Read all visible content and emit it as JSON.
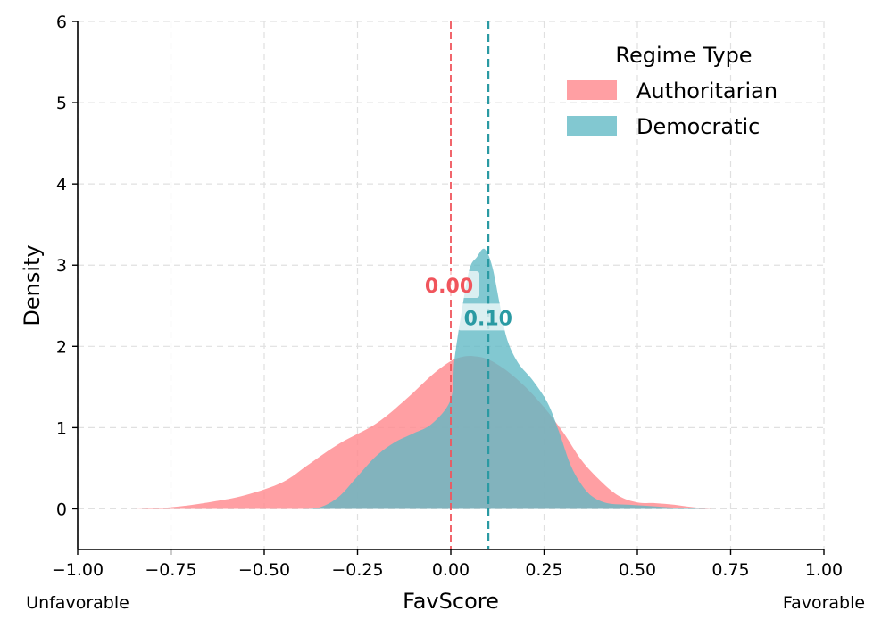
{
  "chart_data": {
    "type": "area",
    "xlabel": "FavScore",
    "ylabel": "Density",
    "xlim": [
      -1.0,
      1.0
    ],
    "ylim": [
      -0.5,
      6
    ],
    "xticks": [
      -1.0,
      -0.75,
      -0.5,
      -0.25,
      0.0,
      0.25,
      0.5,
      0.75,
      1.0
    ],
    "xtick_labels": [
      "−1.00",
      "−0.75",
      "−0.50",
      "−0.25",
      "0.00",
      "0.25",
      "0.50",
      "0.75",
      "1.00"
    ],
    "yticks": [
      0,
      1,
      2,
      3,
      4,
      5,
      6
    ],
    "ytick_labels": [
      "0",
      "1",
      "2",
      "3",
      "4",
      "5",
      "6"
    ],
    "x_left_annotation": "Unfavorable",
    "x_right_annotation": "Favorable",
    "grid": true,
    "legend": {
      "title": "Regime Type",
      "placement": "top-right",
      "entries": [
        "Authoritarian",
        "Democratic"
      ]
    },
    "series": [
      {
        "name": "Authoritarian",
        "color": "#ff8a8f",
        "mean": 0.0,
        "mean_label": "0.00",
        "mean_label_color": "#f0555c",
        "x": [
          -0.85,
          -0.75,
          -0.65,
          -0.55,
          -0.45,
          -0.38,
          -0.3,
          -0.2,
          -0.12,
          -0.05,
          0.0,
          0.03,
          0.06,
          0.1,
          0.15,
          0.2,
          0.25,
          0.3,
          0.35,
          0.4,
          0.45,
          0.5,
          0.55,
          0.6,
          0.65,
          0.7
        ],
        "y": [
          0.0,
          0.02,
          0.08,
          0.17,
          0.33,
          0.55,
          0.8,
          1.05,
          1.35,
          1.65,
          1.82,
          1.87,
          1.88,
          1.84,
          1.7,
          1.5,
          1.25,
          0.95,
          0.6,
          0.35,
          0.16,
          0.08,
          0.07,
          0.05,
          0.02,
          0.0
        ]
      },
      {
        "name": "Democratic",
        "color": "#5fb8c4",
        "mean": 0.1,
        "mean_label": "0.10",
        "mean_label_color": "#2a9aa3",
        "x": [
          -0.4,
          -0.35,
          -0.3,
          -0.25,
          -0.2,
          -0.15,
          -0.1,
          -0.05,
          0.0,
          0.01,
          0.03,
          0.05,
          0.07,
          0.09,
          0.11,
          0.13,
          0.15,
          0.18,
          0.22,
          0.26,
          0.29,
          0.32,
          0.35,
          0.38,
          0.42,
          0.48,
          0.55,
          0.62,
          0.7
        ],
        "y": [
          0.0,
          0.02,
          0.15,
          0.4,
          0.65,
          0.82,
          0.93,
          1.05,
          1.35,
          1.85,
          2.45,
          2.95,
          3.1,
          3.2,
          3.0,
          2.55,
          2.1,
          1.8,
          1.58,
          1.3,
          0.95,
          0.55,
          0.3,
          0.15,
          0.07,
          0.05,
          0.03,
          0.01,
          0.0
        ]
      }
    ]
  }
}
